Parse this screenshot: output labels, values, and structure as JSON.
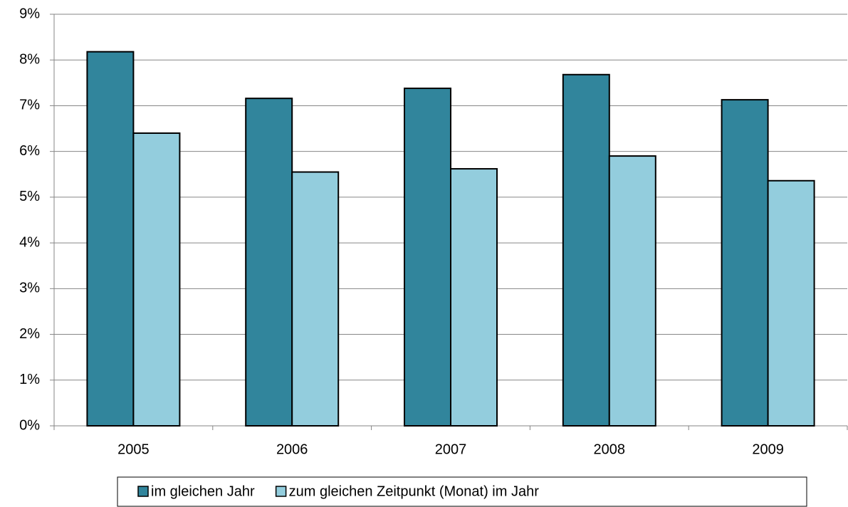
{
  "chart_data": {
    "type": "bar",
    "categories": [
      "2005",
      "2006",
      "2007",
      "2008",
      "2009"
    ],
    "series": [
      {
        "name": "im gleichen Jahr",
        "color": "#31859c",
        "values": [
          8.18,
          7.16,
          7.38,
          7.68,
          7.13
        ]
      },
      {
        "name": "zum gleichen Zeitpunkt (Monat) im Jahr",
        "color": "#93cddd",
        "values": [
          6.4,
          5.55,
          5.62,
          5.9,
          5.36
        ]
      }
    ],
    "ylim": [
      0,
      9
    ],
    "yticks": [
      {
        "value": 0,
        "label": "0%"
      },
      {
        "value": 1,
        "label": "1%"
      },
      {
        "value": 2,
        "label": "2%"
      },
      {
        "value": 3,
        "label": "3%"
      },
      {
        "value": 4,
        "label": "4%"
      },
      {
        "value": 5,
        "label": "5%"
      },
      {
        "value": 6,
        "label": "6%"
      },
      {
        "value": 7,
        "label": "7%"
      },
      {
        "value": 8,
        "label": "8%"
      },
      {
        "value": 9,
        "label": "9%"
      }
    ],
    "grid": true,
    "legend": "bottom"
  }
}
